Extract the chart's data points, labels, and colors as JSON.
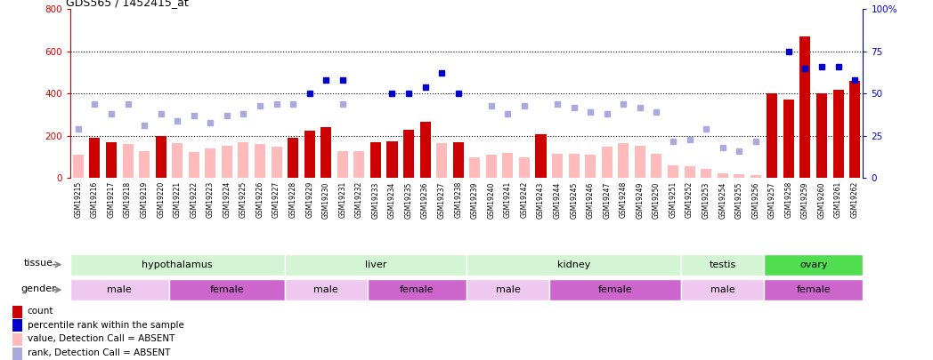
{
  "title": "GDS565 / 1452415_at",
  "samples": [
    "GSM19215",
    "GSM19216",
    "GSM19217",
    "GSM19218",
    "GSM19219",
    "GSM19220",
    "GSM19221",
    "GSM19222",
    "GSM19223",
    "GSM19224",
    "GSM19225",
    "GSM19226",
    "GSM19227",
    "GSM19228",
    "GSM19229",
    "GSM19230",
    "GSM19231",
    "GSM19232",
    "GSM19233",
    "GSM19234",
    "GSM19235",
    "GSM19236",
    "GSM19237",
    "GSM19238",
    "GSM19239",
    "GSM19240",
    "GSM19241",
    "GSM19242",
    "GSM19243",
    "GSM19244",
    "GSM19245",
    "GSM19246",
    "GSM19247",
    "GSM19248",
    "GSM19249",
    "GSM19250",
    "GSM19251",
    "GSM19252",
    "GSM19253",
    "GSM19254",
    "GSM19255",
    "GSM19256",
    "GSM19257",
    "GSM19258",
    "GSM19259",
    "GSM19260",
    "GSM19261",
    "GSM19262"
  ],
  "count_values": [
    null,
    190,
    170,
    null,
    null,
    200,
    null,
    null,
    null,
    null,
    null,
    null,
    null,
    190,
    225,
    240,
    null,
    null,
    170,
    175,
    230,
    265,
    null,
    170,
    null,
    null,
    null,
    null,
    210,
    null,
    null,
    null,
    null,
    null,
    null,
    null,
    null,
    null,
    null,
    null,
    null,
    null,
    400,
    370,
    670,
    400,
    420,
    460
  ],
  "absent_value": [
    110,
    null,
    null,
    160,
    130,
    null,
    165,
    125,
    140,
    155,
    170,
    160,
    150,
    null,
    null,
    null,
    130,
    130,
    null,
    null,
    null,
    null,
    165,
    null,
    100,
    110,
    120,
    100,
    null,
    115,
    115,
    110,
    150,
    165,
    155,
    115,
    60,
    55,
    45,
    25,
    20,
    15,
    null,
    null,
    null,
    null,
    null,
    null
  ],
  "percentile_rank_pct": [
    null,
    null,
    null,
    null,
    null,
    null,
    null,
    null,
    null,
    null,
    null,
    null,
    null,
    null,
    50,
    58,
    58,
    null,
    null,
    50,
    50,
    54,
    62,
    50,
    null,
    null,
    null,
    null,
    null,
    null,
    null,
    null,
    null,
    null,
    null,
    null,
    null,
    null,
    null,
    null,
    null,
    null,
    null,
    75,
    65,
    66,
    66,
    58
  ],
  "absent_rank_pct": [
    29,
    44,
    38,
    44,
    31,
    38,
    34,
    37,
    33,
    37,
    38,
    43,
    44,
    44,
    null,
    null,
    44,
    null,
    null,
    null,
    null,
    null,
    null,
    null,
    null,
    43,
    38,
    43,
    null,
    44,
    42,
    39,
    38,
    44,
    42,
    39,
    22,
    23,
    29,
    18,
    16,
    22,
    null,
    null,
    null,
    null,
    null,
    null
  ],
  "tissues": [
    {
      "name": "hypothalamus",
      "start": 0,
      "end": 13,
      "color": "#d4f5d4"
    },
    {
      "name": "liver",
      "start": 13,
      "end": 24,
      "color": "#d4f5d4"
    },
    {
      "name": "kidney",
      "start": 24,
      "end": 37,
      "color": "#d4f5d4"
    },
    {
      "name": "testis",
      "start": 37,
      "end": 42,
      "color": "#d4f5d4"
    },
    {
      "name": "ovary",
      "start": 42,
      "end": 48,
      "color": "#50dd50"
    }
  ],
  "genders": [
    {
      "name": "male",
      "start": 0,
      "end": 6,
      "color": "#eec8ee"
    },
    {
      "name": "female",
      "start": 6,
      "end": 13,
      "color": "#cc66cc"
    },
    {
      "name": "male",
      "start": 13,
      "end": 18,
      "color": "#eec8ee"
    },
    {
      "name": "female",
      "start": 18,
      "end": 24,
      "color": "#cc66cc"
    },
    {
      "name": "male",
      "start": 24,
      "end": 29,
      "color": "#eec8ee"
    },
    {
      "name": "female",
      "start": 29,
      "end": 37,
      "color": "#cc66cc"
    },
    {
      "name": "male",
      "start": 37,
      "end": 42,
      "color": "#eec8ee"
    },
    {
      "name": "female",
      "start": 42,
      "end": 48,
      "color": "#cc66cc"
    }
  ],
  "ylim_left": [
    0,
    800
  ],
  "ylim_right": [
    0,
    100
  ],
  "yticks_left": [
    0,
    200,
    400,
    600,
    800
  ],
  "yticks_right": [
    0,
    25,
    50,
    75,
    100
  ],
  "left_color": "#cc0000",
  "right_color": "#0000cc",
  "count_color": "#cc0000",
  "absent_val_color": "#ffbbbb",
  "percentile_color": "#0000cc",
  "absent_rank_color": "#aaaadd",
  "bar_width": 0.65,
  "legend_items": [
    {
      "label": "count",
      "color": "#cc0000"
    },
    {
      "label": "percentile rank within the sample",
      "color": "#0000cc"
    },
    {
      "label": "value, Detection Call = ABSENT",
      "color": "#ffbbbb"
    },
    {
      "label": "rank, Detection Call = ABSENT",
      "color": "#aaaadd"
    }
  ]
}
